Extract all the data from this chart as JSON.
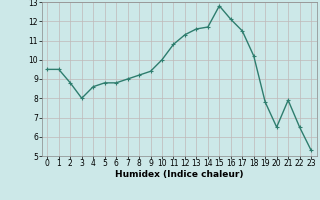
{
  "x": [
    0,
    1,
    2,
    3,
    4,
    5,
    6,
    7,
    8,
    9,
    10,
    11,
    12,
    13,
    14,
    15,
    16,
    17,
    18,
    19,
    20,
    21,
    22,
    23
  ],
  "y": [
    9.5,
    9.5,
    8.8,
    8.0,
    8.6,
    8.8,
    8.8,
    9.0,
    9.2,
    9.4,
    10.0,
    10.8,
    11.3,
    11.6,
    11.7,
    12.8,
    12.1,
    11.5,
    10.2,
    7.8,
    6.5,
    7.9,
    6.5,
    5.3
  ],
  "line_color": "#2e7d6e",
  "marker": "+",
  "marker_size": 3,
  "bg_color": "#cce8e8",
  "grid_color": "#c0b8b8",
  "xlabel": "Humidex (Indice chaleur)",
  "xlim": [
    -0.5,
    23.5
  ],
  "ylim": [
    5,
    13
  ],
  "yticks": [
    5,
    6,
    7,
    8,
    9,
    10,
    11,
    12,
    13
  ],
  "xticks": [
    0,
    1,
    2,
    3,
    4,
    5,
    6,
    7,
    8,
    9,
    10,
    11,
    12,
    13,
    14,
    15,
    16,
    17,
    18,
    19,
    20,
    21,
    22,
    23
  ],
  "xlabel_fontsize": 6.5,
  "tick_fontsize": 5.5,
  "line_width": 1.0,
  "marker_edge_width": 0.8
}
